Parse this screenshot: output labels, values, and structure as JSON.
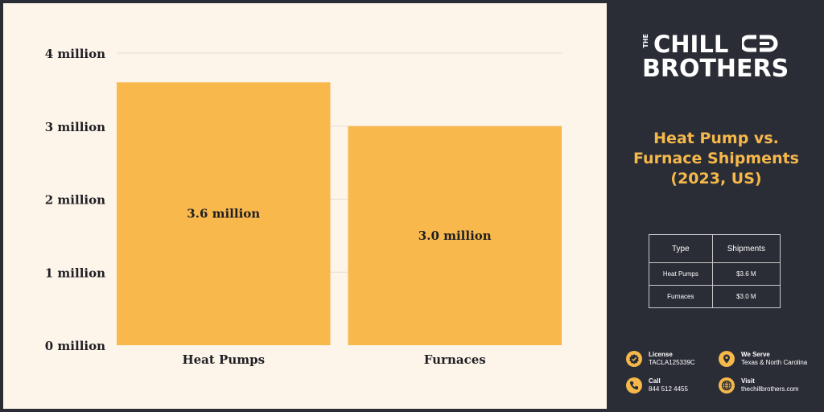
{
  "chart_data": {
    "type": "bar",
    "title": "Heat Pump vs. Furnace Shipments (2023, US)",
    "categories": [
      "Heat Pumps",
      "Furnaces"
    ],
    "values": [
      3.6,
      3.0
    ],
    "data_labels": [
      "3.6 million",
      "3.0 million"
    ],
    "y_ticks": [
      0,
      1,
      2,
      3,
      4
    ],
    "y_tick_labels": [
      "0 million",
      "1 million",
      "2 million",
      "3 million",
      "4 million"
    ],
    "ylim": [
      0,
      4
    ],
    "xlabel": "",
    "ylabel": "",
    "grid": true
  },
  "colors": {
    "bar": "#f8b84b",
    "background": "#fdf5ea",
    "panel": "#2b2d36",
    "accent": "#f5b84a"
  },
  "brand": {
    "the": "THE",
    "chill": "CHILL",
    "brothers": "BROTHERS"
  },
  "side_title_lines": [
    "Heat Pump vs.",
    "Furnace Shipments",
    "(2023, US)"
  ],
  "table": {
    "headers": [
      "Type",
      "Shipments"
    ],
    "rows": [
      [
        "Heat Pumps",
        "$3.6 M"
      ],
      [
        "Furnaces",
        "$3.0 M"
      ]
    ]
  },
  "contact": {
    "license": {
      "label": "License",
      "value": "TACLA125339C",
      "icon": "badge-check-icon"
    },
    "we_serve": {
      "label": "We Serve",
      "value": "Texas & North Carolina",
      "icon": "map-pin-icon"
    },
    "call": {
      "label": "Call",
      "value": "844 512 4455",
      "icon": "phone-icon"
    },
    "visit": {
      "label": "Visit",
      "value": "thechillbrothers.com",
      "icon": "globe-icon"
    }
  }
}
